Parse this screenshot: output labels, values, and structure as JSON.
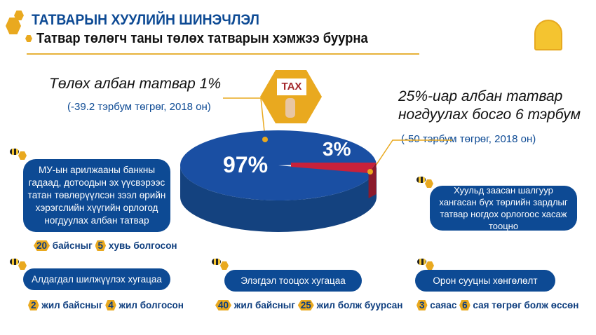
{
  "header": {
    "title": "ТАТВАРЫН ХУУЛИЙН ШИНЭЧЛЭЛ",
    "subtitle": "Татвар төлөгч таны төлөх татварын хэмжээ буурна"
  },
  "tax_badge": "TAX",
  "left_callout": {
    "title": "Төлөх албан татвар 1%",
    "sub": "(-39.2 тэрбум төгрөг, 2018 он)"
  },
  "right_callout": {
    "line1": "25%-иар албан татвар",
    "line2": "ногдуулах босго 6 тэрбум",
    "sub": "(-50 тэрбум төгрөг, 2018 он)"
  },
  "chart_data": {
    "type": "pie",
    "slices": [
      {
        "label": "97%",
        "value": 97,
        "color": "#1a4fa3"
      },
      {
        "label": "3%",
        "value": 3,
        "color": "#c8213a"
      }
    ]
  },
  "boxes": {
    "interest": {
      "text": "МУ-ын арилжааны банкны гадаад, дотоодын эх үүсвэрээс татан төвлөрүүлсэн зээл өрийн хэрэгслийн хүүгийн орлогод ногдуулах албан татвар",
      "n1": "20",
      "t1": "байсныг",
      "n2": "5",
      "t2": "хувь болгосон"
    },
    "loss": {
      "text": "Алдагдал шилжүүлэх хугацаа",
      "n1": "2",
      "t1": "жил байсныг",
      "n2": "4",
      "t2": "жил болгосон"
    },
    "depreciation": {
      "text": "Элэгдэл тооцох хугацаа",
      "n1": "40",
      "t1": "жил байсныг",
      "n2": "25",
      "t2": "жил болж буурсан"
    },
    "housing": {
      "text": "Орон сууцны хөнгөлөлт",
      "n1": "3",
      "t1": "саяас",
      "n2": "6",
      "t2": "сая төгрөг болж өссөн"
    },
    "expenses": {
      "text": "Хуульд заасан шалгуур хангасан бүх төрлийн зардлыг татвар ногдох орлогоос хасаж тооцно"
    }
  }
}
